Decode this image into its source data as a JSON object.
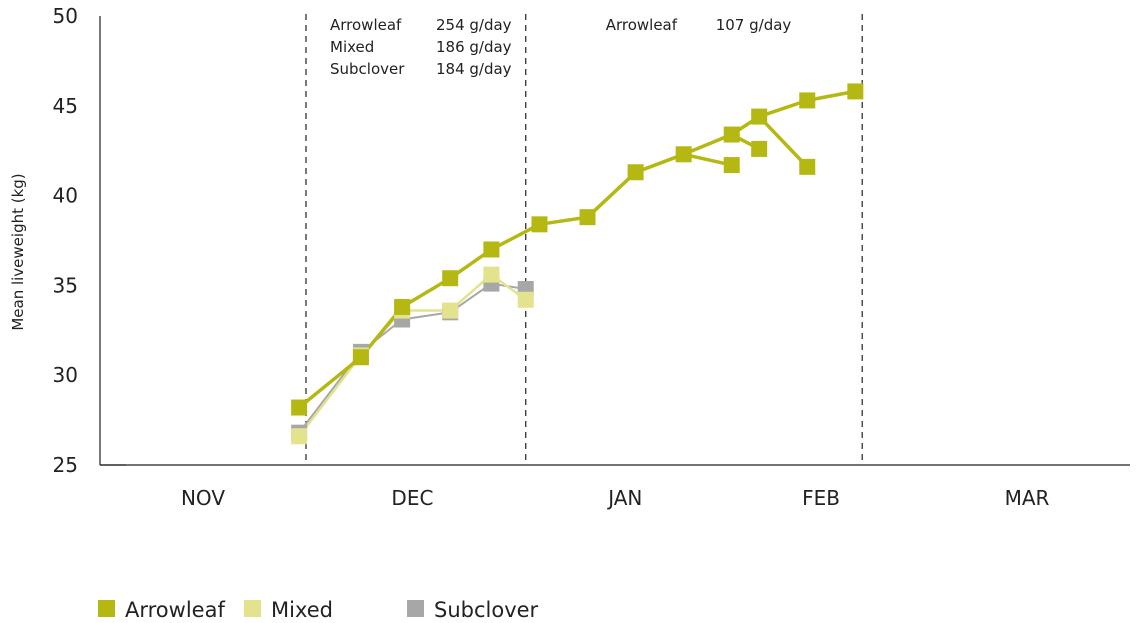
{
  "chart_data": {
    "type": "line",
    "ylabel": "Mean liveweight (kg)",
    "ylim": [
      25,
      50
    ],
    "yticks": [
      25,
      30,
      35,
      40,
      45,
      50
    ],
    "x_unit": "day of period starting 1 Nov",
    "xlim": [
      0,
      150
    ],
    "month_labels": [
      {
        "label": "NOV",
        "day": 15
      },
      {
        "label": "DEC",
        "day": 45.5
      },
      {
        "label": "JAN",
        "day": 76.5
      },
      {
        "label": "FEB",
        "day": 105
      },
      {
        "label": "MAR",
        "day": 135
      }
    ],
    "dividers": [
      30,
      62,
      111
    ],
    "annotations": [
      {
        "segment": [
          30,
          62
        ],
        "rows": [
          {
            "name": "Arrowleaf",
            "value": "254 g/day"
          },
          {
            "name": "Mixed",
            "value": "186 g/day"
          },
          {
            "name": "Subclover",
            "value": "184 g/day"
          }
        ]
      },
      {
        "segment": [
          62,
          111
        ],
        "rows": [
          {
            "name": "Arrowleaf",
            "value": "107 g/day"
          }
        ]
      }
    ],
    "grid": false,
    "legend_position": "bottom-left",
    "series": [
      {
        "name": "Arrowleaf",
        "color": "#b5b812",
        "width": 3.5,
        "points": [
          [
            29,
            28.2
          ],
          [
            38,
            31.0
          ],
          [
            44,
            33.8
          ],
          [
            51,
            35.4
          ],
          [
            57,
            37.0
          ],
          [
            64,
            38.4
          ],
          [
            71,
            38.8
          ],
          [
            78,
            41.3
          ],
          [
            85,
            42.3
          ],
          [
            92,
            43.4
          ],
          [
            96,
            44.4
          ],
          [
            103,
            45.3
          ],
          [
            110,
            45.8
          ]
        ],
        "extra_markers": [
          [
            92,
            41.7
          ],
          [
            96,
            42.6
          ],
          [
            103,
            41.6
          ]
        ],
        "branches": [
          [
            [
              85,
              42.3
            ],
            [
              92,
              41.7
            ]
          ],
          [
            [
              92,
              43.4
            ],
            [
              96,
              42.6
            ]
          ],
          [
            [
              96,
              44.4
            ],
            [
              103,
              41.6
            ]
          ]
        ]
      },
      {
        "name": "Mixed",
        "color": "#e3e38e",
        "width": 2.5,
        "points": [
          [
            29,
            26.6
          ],
          [
            38,
            31.1
          ],
          [
            44,
            33.6
          ],
          [
            51,
            33.6
          ],
          [
            57,
            35.6
          ],
          [
            62,
            34.2
          ]
        ]
      },
      {
        "name": "Subclover",
        "color": "#a7a7a7",
        "width": 2,
        "points": [
          [
            29,
            26.8
          ],
          [
            38,
            31.3
          ],
          [
            44,
            33.1
          ],
          [
            51,
            33.5
          ],
          [
            57,
            35.1
          ],
          [
            62,
            34.8
          ]
        ]
      }
    ]
  }
}
